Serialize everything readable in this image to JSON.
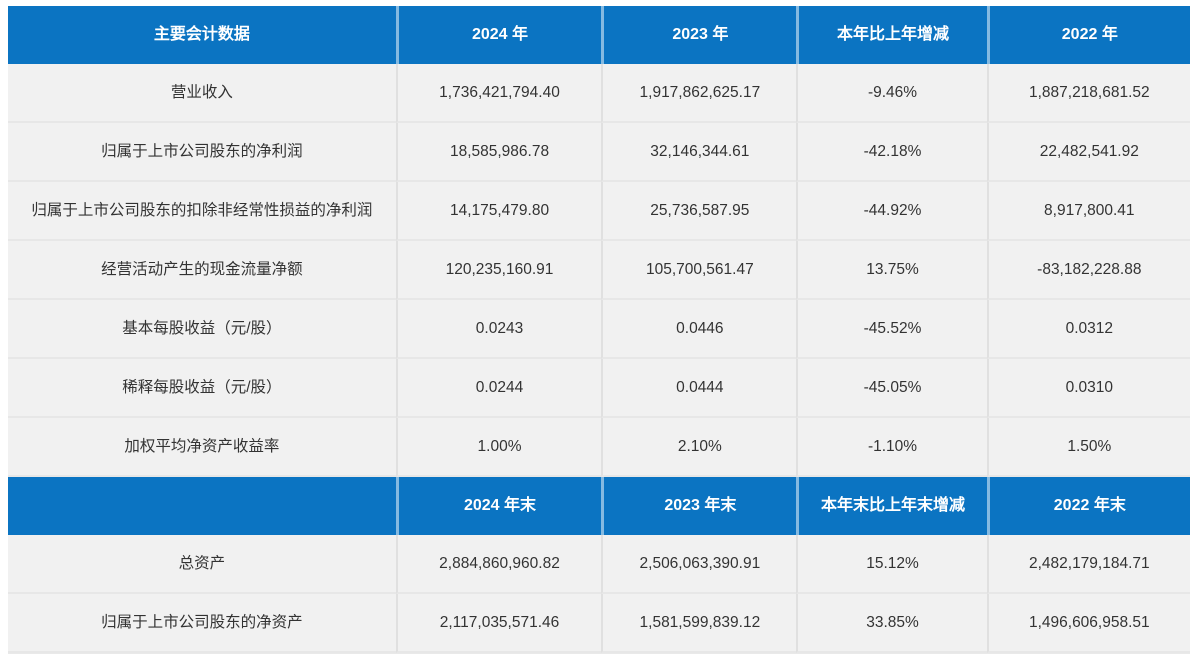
{
  "colors": {
    "header_bg": "#0b74c2",
    "header_text": "#ffffff",
    "row_bg": "#f1f1f1",
    "body_text": "#333333"
  },
  "table": {
    "header_annual": {
      "label": "主要会计数据",
      "c2024": "2024 年",
      "c2023": "2023 年",
      "change": "本年比上年增减",
      "c2022": "2022 年"
    },
    "rows_annual": [
      {
        "label": "营业收入",
        "v2024": "1,736,421,794.40",
        "v2023": "1,917,862,625.17",
        "change": "-9.46%",
        "v2022": "1,887,218,681.52"
      },
      {
        "label": "归属于上市公司股东的净利润",
        "v2024": "18,585,986.78",
        "v2023": "32,146,344.61",
        "change": "-42.18%",
        "v2022": "22,482,541.92"
      },
      {
        "label": "归属于上市公司股东的扣除非经常性损益的净利润",
        "v2024": "14,175,479.80",
        "v2023": "25,736,587.95",
        "change": "-44.92%",
        "v2022": "8,917,800.41"
      },
      {
        "label": "经营活动产生的现金流量净额",
        "v2024": "120,235,160.91",
        "v2023": "105,700,561.47",
        "change": "13.75%",
        "v2022": "-83,182,228.88"
      },
      {
        "label": "基本每股收益（元/股）",
        "v2024": "0.0243",
        "v2023": "0.0446",
        "change": "-45.52%",
        "v2022": "0.0312"
      },
      {
        "label": "稀释每股收益（元/股）",
        "v2024": "0.0244",
        "v2023": "0.0444",
        "change": "-45.05%",
        "v2022": "0.0310"
      },
      {
        "label": "加权平均净资产收益率",
        "v2024": "1.00%",
        "v2023": "2.10%",
        "change": "-1.10%",
        "v2022": "1.50%"
      }
    ],
    "header_period_end": {
      "label": "",
      "c2024": "2024 年末",
      "c2023": "2023 年末",
      "change": "本年末比上年末增减",
      "c2022": "2022 年末"
    },
    "rows_period_end": [
      {
        "label": "总资产",
        "v2024": "2,884,860,960.82",
        "v2023": "2,506,063,390.91",
        "change": "15.12%",
        "v2022": "2,482,179,184.71"
      },
      {
        "label": "归属于上市公司股东的净资产",
        "v2024": "2,117,035,571.46",
        "v2023": "1,581,599,839.12",
        "change": "33.85%",
        "v2022": "1,496,606,958.51"
      }
    ]
  }
}
